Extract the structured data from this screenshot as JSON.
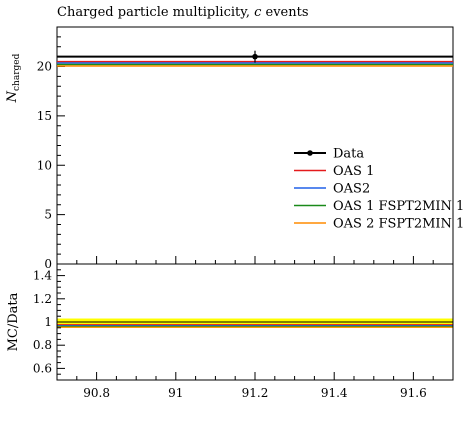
{
  "chart_data": [
    {
      "type": "line",
      "title_main": "Charged particle multiplicity, ",
      "title_italic": "c",
      "title_rest": " events",
      "ylabel_main": "N",
      "ylabel_sub": "charged",
      "xlim": [
        90.7,
        91.7
      ],
      "ylim": [
        0,
        24
      ],
      "yticks": [
        {
          "value": 0,
          "label": "0"
        },
        {
          "value": 5,
          "label": "5"
        },
        {
          "value": 10,
          "label": "10"
        },
        {
          "value": 15,
          "label": "15"
        },
        {
          "value": 20,
          "label": "20"
        }
      ],
      "data": {
        "name": "Data",
        "x": 91.2,
        "y": 21.0,
        "yerr": 0.6,
        "x_range": [
          90.7,
          91.7
        ],
        "color": "#000000"
      },
      "series": [
        {
          "name": "OAS 1",
          "y": 20.5,
          "color": "#e41a1c"
        },
        {
          "name": "OAS2",
          "y": 20.35,
          "color": "#2060e8"
        },
        {
          "name": "OAS 1 FSPT2MIN 1",
          "y": 20.2,
          "color": "#1a8a1a"
        },
        {
          "name": "OAS 2 FSPT2MIN 1",
          "y": 20.05,
          "color": "#ff8c00"
        }
      ],
      "legend_position": "center-right"
    },
    {
      "type": "line",
      "ylabel": "MC/Data",
      "xlim": [
        90.7,
        91.7
      ],
      "ylim": [
        0.5,
        1.5
      ],
      "yticks": [
        {
          "value": 0.6,
          "label": "0.6"
        },
        {
          "value": 0.8,
          "label": "0.8"
        },
        {
          "value": 1.0,
          "label": "1"
        },
        {
          "value": 1.2,
          "label": "1.2"
        },
        {
          "value": 1.4,
          "label": "1.4"
        }
      ],
      "xticks": [
        {
          "value": 90.8,
          "label": "90.8"
        },
        {
          "value": 91.0,
          "label": "91"
        },
        {
          "value": 91.2,
          "label": "91.2"
        },
        {
          "value": 91.4,
          "label": "91.4"
        },
        {
          "value": 91.6,
          "label": "91.6"
        }
      ],
      "band": {
        "low": 0.95,
        "high": 1.03,
        "color": "#ffff00"
      },
      "reference": 1.0,
      "series": [
        {
          "name": "OAS 1",
          "y": 0.976,
          "color": "#e41a1c"
        },
        {
          "name": "OAS2",
          "y": 0.969,
          "color": "#2060e8"
        },
        {
          "name": "OAS 1 FSPT2MIN 1",
          "y": 0.962,
          "color": "#1a8a1a"
        },
        {
          "name": "OAS 2 FSPT2MIN 1",
          "y": 0.955,
          "color": "#ff8c00"
        }
      ]
    }
  ]
}
